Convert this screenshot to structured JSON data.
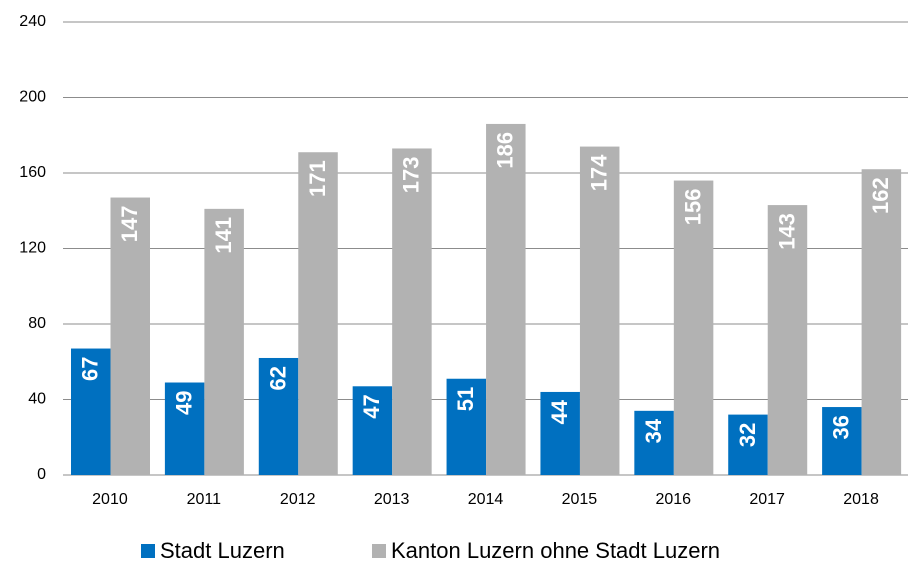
{
  "chart_data": {
    "type": "bar",
    "categories": [
      "2010",
      "2011",
      "2012",
      "2013",
      "2014",
      "2015",
      "2016",
      "2017",
      "2018"
    ],
    "series": [
      {
        "name": "Stadt Luzern",
        "color": "#0070c0",
        "values": [
          67,
          49,
          62,
          47,
          51,
          44,
          34,
          32,
          36
        ]
      },
      {
        "name": "Kanton Luzern ohne Stadt Luzern",
        "color": "#b2b2b2",
        "values": [
          147,
          141,
          171,
          173,
          186,
          174,
          156,
          143,
          162
        ]
      }
    ],
    "ylim": [
      0,
      240
    ],
    "yticks": [
      0,
      40,
      80,
      120,
      160,
      200,
      240
    ],
    "grid": true,
    "legend": "bottom"
  }
}
